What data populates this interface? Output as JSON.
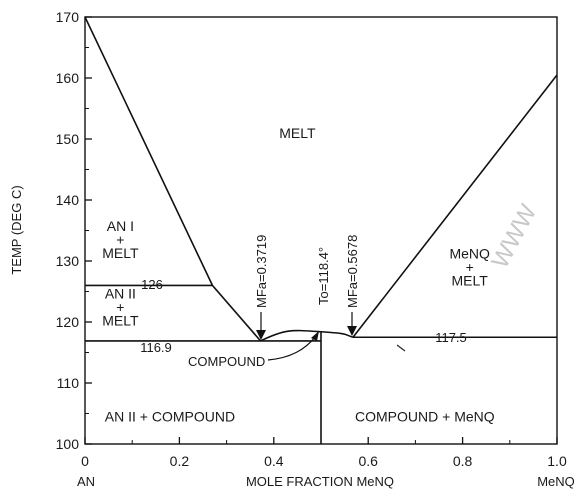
{
  "chart_data": {
    "type": "line",
    "title": "",
    "xlabel": "MOLE FRACTION MeNQ",
    "ylabel": "TEMP (DEG C)",
    "xlim": [
      0,
      1.0
    ],
    "ylim": [
      100,
      170
    ],
    "x_ticks": [
      0,
      0.2,
      0.4,
      0.6,
      0.8,
      1.0
    ],
    "x_tick_labels": [
      "0",
      "0.2",
      "0.4",
      "0.6",
      "0.8",
      "1.0"
    ],
    "y_ticks": [
      100,
      110,
      120,
      130,
      140,
      150,
      160,
      170
    ],
    "y_tick_labels": [
      "100",
      "110",
      "120",
      "130",
      "140",
      "150",
      "160",
      "170"
    ],
    "x_end_labels": {
      "left": "AN",
      "right": "MeNQ"
    },
    "grid": false,
    "series": [
      {
        "x": [
          0,
          0.27,
          0.3719
        ],
        "y": [
          170,
          126,
          116.9
        ]
      },
      {
        "x": [
          0.3719,
          0.45,
          0.5,
          0.5678
        ],
        "y": [
          116.9,
          118.0,
          118.4,
          117.5
        ]
      },
      {
        "x": [
          0.5678,
          1.0
        ],
        "y": [
          117.5,
          160.5
        ]
      },
      {
        "x": [
          0,
          0.27
        ],
        "y": [
          126,
          126
        ]
      },
      {
        "x": [
          0,
          0.5
        ],
        "y": [
          116.9,
          116.9
        ]
      },
      {
        "x": [
          0.5678,
          1.0
        ],
        "y": [
          117.5,
          117.5
        ]
      },
      {
        "x": [
          0.5,
          0.5
        ],
        "y": [
          100,
          118.4
        ]
      }
    ],
    "regions": [
      {
        "id": "melt",
        "lines": [
          "MELT"
        ],
        "x": 0.45,
        "y": 151
      },
      {
        "id": "an1-melt",
        "lines": [
          "AN I",
          "+",
          "MELT"
        ],
        "x": 0.075,
        "y": 133.5
      },
      {
        "id": "an2-melt",
        "lines": [
          "AN II",
          "+",
          "MELT"
        ],
        "x": 0.075,
        "y": 122.5
      },
      {
        "id": "menq-melt",
        "lines": [
          "MeNQ",
          "+",
          "MELT"
        ],
        "x": 0.815,
        "y": 129
      },
      {
        "id": "an2-compound",
        "lines": [
          "AN II + COMPOUND"
        ],
        "x": 0.18,
        "y": 104.5
      },
      {
        "id": "compound-menq",
        "lines": [
          "COMPOUND + MeNQ"
        ],
        "x": 0.72,
        "y": 104.5
      }
    ],
    "annotations": {
      "t126": "126",
      "t1169": "116.9",
      "t1175": "117.5",
      "mfa1": "MFa=0.3719",
      "mfa2": "MFa=0.5678",
      "to": "To=118.4°",
      "compound": "COMPOUND",
      "watermark": "WWW"
    }
  }
}
